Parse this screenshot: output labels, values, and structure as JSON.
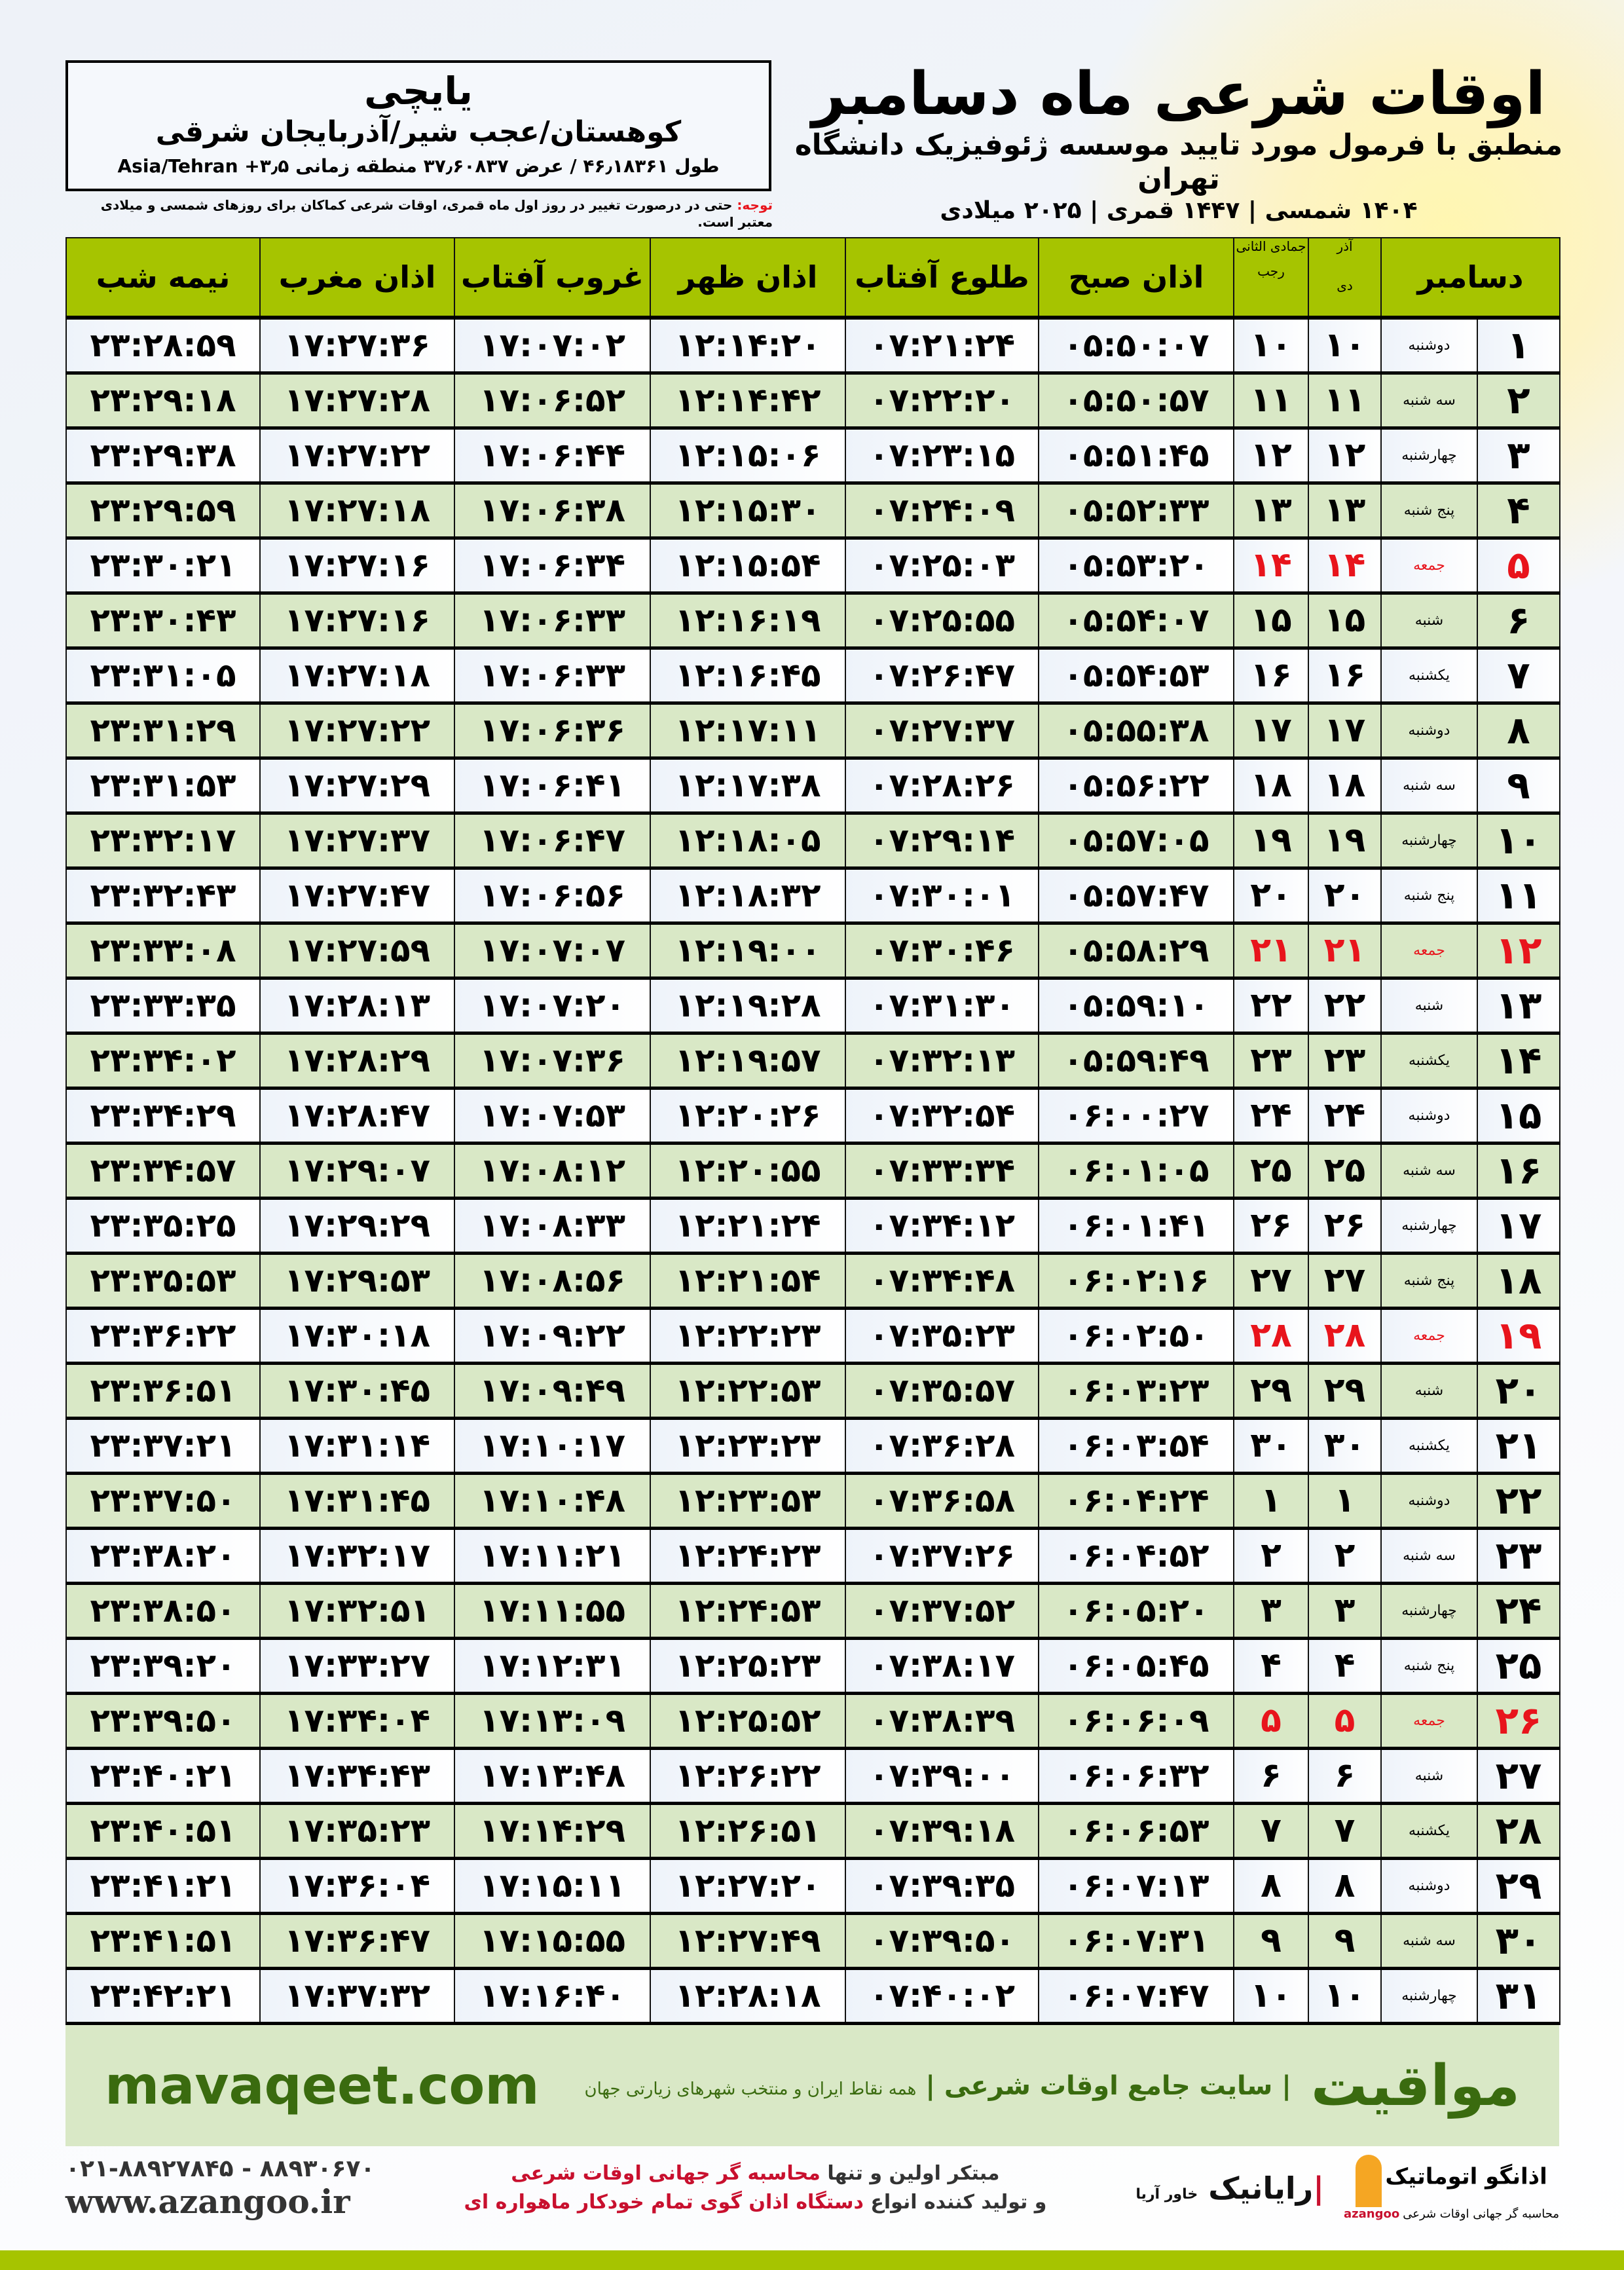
{
  "header": {
    "title": "اوقات شرعی ماه دسامبر",
    "subtitle": "منطبق با فرمول مورد تایید موسسه ژئوفیزیک دانشگاه تهران",
    "dateline": "۱۴۰۴ شمسی | ۱۴۴۷ قمری | ۲۰۲۵ میلادی"
  },
  "location": {
    "name": "یایچی",
    "path": "کوهستان/عجب شیر/آذربایجان شرقی",
    "coords": "طول ۴۶٫۱۸۳۶۱ / عرض ۳۷٫۶۰۸۳۷ منطقه زمانی ۳٫۵+ Asia/Tehran"
  },
  "note": {
    "label": "توجه:",
    "text": " حتی در درصورت تغییر در روز اول ماه قمری، اوقات شرعی کماکان برای روزهای شمسی و میلادی معتبر است."
  },
  "table": {
    "headers": {
      "month": "دسامبر",
      "prev_shamsi": "آذر",
      "dey": "دی",
      "prev_qamari": "جمادی الثانی",
      "rajab": "رجب",
      "sobh": "اذان صبح",
      "tolu": "طلوع آفتاب",
      "zohr": "اذان ظهر",
      "ghorub": "غروب آفتاب",
      "maghreb": "اذان مغرب",
      "nime": "نیمه شب"
    },
    "friday_color": "#e8141c",
    "rows": [
      [
        "۱",
        "دوشنبه",
        "۱۰",
        "۱۰",
        "۰۵:۵۰:۰۷",
        "۰۷:۲۱:۲۴",
        "۱۲:۱۴:۲۰",
        "۱۷:۰۷:۰۲",
        "۱۷:۲۷:۳۶",
        "۲۳:۲۸:۵۹"
      ],
      [
        "۲",
        "سه شنبه",
        "۱۱",
        "۱۱",
        "۰۵:۵۰:۵۷",
        "۰۷:۲۲:۲۰",
        "۱۲:۱۴:۴۲",
        "۱۷:۰۶:۵۲",
        "۱۷:۲۷:۲۸",
        "۲۳:۲۹:۱۸"
      ],
      [
        "۳",
        "چهارشنبه",
        "۱۲",
        "۱۲",
        "۰۵:۵۱:۴۵",
        "۰۷:۲۳:۱۵",
        "۱۲:۱۵:۰۶",
        "۱۷:۰۶:۴۴",
        "۱۷:۲۷:۲۲",
        "۲۳:۲۹:۳۸"
      ],
      [
        "۴",
        "پنج شنبه",
        "۱۳",
        "۱۳",
        "۰۵:۵۲:۳۳",
        "۰۷:۲۴:۰۹",
        "۱۲:۱۵:۳۰",
        "۱۷:۰۶:۳۸",
        "۱۷:۲۷:۱۸",
        "۲۳:۲۹:۵۹"
      ],
      [
        "۵",
        "جمعه",
        "۱۴",
        "۱۴",
        "۰۵:۵۳:۲۰",
        "۰۷:۲۵:۰۳",
        "۱۲:۱۵:۵۴",
        "۱۷:۰۶:۳۴",
        "۱۷:۲۷:۱۶",
        "۲۳:۳۰:۲۱"
      ],
      [
        "۶",
        "شنبه",
        "۱۵",
        "۱۵",
        "۰۵:۵۴:۰۷",
        "۰۷:۲۵:۵۵",
        "۱۲:۱۶:۱۹",
        "۱۷:۰۶:۳۳",
        "۱۷:۲۷:۱۶",
        "۲۳:۳۰:۴۳"
      ],
      [
        "۷",
        "یکشنبه",
        "۱۶",
        "۱۶",
        "۰۵:۵۴:۵۳",
        "۰۷:۲۶:۴۷",
        "۱۲:۱۶:۴۵",
        "۱۷:۰۶:۳۳",
        "۱۷:۲۷:۱۸",
        "۲۳:۳۱:۰۵"
      ],
      [
        "۸",
        "دوشنبه",
        "۱۷",
        "۱۷",
        "۰۵:۵۵:۳۸",
        "۰۷:۲۷:۳۷",
        "۱۲:۱۷:۱۱",
        "۱۷:۰۶:۳۶",
        "۱۷:۲۷:۲۲",
        "۲۳:۳۱:۲۹"
      ],
      [
        "۹",
        "سه شنبه",
        "۱۸",
        "۱۸",
        "۰۵:۵۶:۲۲",
        "۰۷:۲۸:۲۶",
        "۱۲:۱۷:۳۸",
        "۱۷:۰۶:۴۱",
        "۱۷:۲۷:۲۹",
        "۲۳:۳۱:۵۳"
      ],
      [
        "۱۰",
        "چهارشنبه",
        "۱۹",
        "۱۹",
        "۰۵:۵۷:۰۵",
        "۰۷:۲۹:۱۴",
        "۱۲:۱۸:۰۵",
        "۱۷:۰۶:۴۷",
        "۱۷:۲۷:۳۷",
        "۲۳:۳۲:۱۷"
      ],
      [
        "۱۱",
        "پنج شنبه",
        "۲۰",
        "۲۰",
        "۰۵:۵۷:۴۷",
        "۰۷:۳۰:۰۱",
        "۱۲:۱۸:۳۲",
        "۱۷:۰۶:۵۶",
        "۱۷:۲۷:۴۷",
        "۲۳:۳۲:۴۳"
      ],
      [
        "۱۲",
        "جمعه",
        "۲۱",
        "۲۱",
        "۰۵:۵۸:۲۹",
        "۰۷:۳۰:۴۶",
        "۱۲:۱۹:۰۰",
        "۱۷:۰۷:۰۷",
        "۱۷:۲۷:۵۹",
        "۲۳:۳۳:۰۸"
      ],
      [
        "۱۳",
        "شنبه",
        "۲۲",
        "۲۲",
        "۰۵:۵۹:۱۰",
        "۰۷:۳۱:۳۰",
        "۱۲:۱۹:۲۸",
        "۱۷:۰۷:۲۰",
        "۱۷:۲۸:۱۳",
        "۲۳:۳۳:۳۵"
      ],
      [
        "۱۴",
        "یکشنبه",
        "۲۳",
        "۲۳",
        "۰۵:۵۹:۴۹",
        "۰۷:۳۲:۱۳",
        "۱۲:۱۹:۵۷",
        "۱۷:۰۷:۳۶",
        "۱۷:۲۸:۲۹",
        "۲۳:۳۴:۰۲"
      ],
      [
        "۱۵",
        "دوشنبه",
        "۲۴",
        "۲۴",
        "۰۶:۰۰:۲۷",
        "۰۷:۳۲:۵۴",
        "۱۲:۲۰:۲۶",
        "۱۷:۰۷:۵۳",
        "۱۷:۲۸:۴۷",
        "۲۳:۳۴:۲۹"
      ],
      [
        "۱۶",
        "سه شنبه",
        "۲۵",
        "۲۵",
        "۰۶:۰۱:۰۵",
        "۰۷:۳۳:۳۴",
        "۱۲:۲۰:۵۵",
        "۱۷:۰۸:۱۲",
        "۱۷:۲۹:۰۷",
        "۲۳:۳۴:۵۷"
      ],
      [
        "۱۷",
        "چهارشنبه",
        "۲۶",
        "۲۶",
        "۰۶:۰۱:۴۱",
        "۰۷:۳۴:۱۲",
        "۱۲:۲۱:۲۴",
        "۱۷:۰۸:۳۳",
        "۱۷:۲۹:۲۹",
        "۲۳:۳۵:۲۵"
      ],
      [
        "۱۸",
        "پنج شنبه",
        "۲۷",
        "۲۷",
        "۰۶:۰۲:۱۶",
        "۰۷:۳۴:۴۸",
        "۱۲:۲۱:۵۴",
        "۱۷:۰۸:۵۶",
        "۱۷:۲۹:۵۳",
        "۲۳:۳۵:۵۳"
      ],
      [
        "۱۹",
        "جمعه",
        "۲۸",
        "۲۸",
        "۰۶:۰۲:۵۰",
        "۰۷:۳۵:۲۳",
        "۱۲:۲۲:۲۳",
        "۱۷:۰۹:۲۲",
        "۱۷:۳۰:۱۸",
        "۲۳:۳۶:۲۲"
      ],
      [
        "۲۰",
        "شنبه",
        "۲۹",
        "۲۹",
        "۰۶:۰۳:۲۳",
        "۰۷:۳۵:۵۷",
        "۱۲:۲۲:۵۳",
        "۱۷:۰۹:۴۹",
        "۱۷:۳۰:۴۵",
        "۲۳:۳۶:۵۱"
      ],
      [
        "۲۱",
        "یکشنبه",
        "۳۰",
        "۳۰",
        "۰۶:۰۳:۵۴",
        "۰۷:۳۶:۲۸",
        "۱۲:۲۳:۲۳",
        "۱۷:۱۰:۱۷",
        "۱۷:۳۱:۱۴",
        "۲۳:۳۷:۲۱"
      ],
      [
        "۲۲",
        "دوشنبه",
        "۱",
        "۱",
        "۰۶:۰۴:۲۴",
        "۰۷:۳۶:۵۸",
        "۱۲:۲۳:۵۳",
        "۱۷:۱۰:۴۸",
        "۱۷:۳۱:۴۵",
        "۲۳:۳۷:۵۰"
      ],
      [
        "۲۳",
        "سه شنبه",
        "۲",
        "۲",
        "۰۶:۰۴:۵۲",
        "۰۷:۳۷:۲۶",
        "۱۲:۲۴:۲۳",
        "۱۷:۱۱:۲۱",
        "۱۷:۳۲:۱۷",
        "۲۳:۳۸:۲۰"
      ],
      [
        "۲۴",
        "چهارشنبه",
        "۳",
        "۳",
        "۰۶:۰۵:۲۰",
        "۰۷:۳۷:۵۲",
        "۱۲:۲۴:۵۳",
        "۱۷:۱۱:۵۵",
        "۱۷:۳۲:۵۱",
        "۲۳:۳۸:۵۰"
      ],
      [
        "۲۵",
        "پنج شنبه",
        "۴",
        "۴",
        "۰۶:۰۵:۴۵",
        "۰۷:۳۸:۱۷",
        "۱۲:۲۵:۲۳",
        "۱۷:۱۲:۳۱",
        "۱۷:۳۳:۲۷",
        "۲۳:۳۹:۲۰"
      ],
      [
        "۲۶",
        "جمعه",
        "۵",
        "۵",
        "۰۶:۰۶:۰۹",
        "۰۷:۳۸:۳۹",
        "۱۲:۲۵:۵۲",
        "۱۷:۱۳:۰۹",
        "۱۷:۳۴:۰۴",
        "۲۳:۳۹:۵۰"
      ],
      [
        "۲۷",
        "شنبه",
        "۶",
        "۶",
        "۰۶:۰۶:۳۲",
        "۰۷:۳۹:۰۰",
        "۱۲:۲۶:۲۲",
        "۱۷:۱۳:۴۸",
        "۱۷:۳۴:۴۳",
        "۲۳:۴۰:۲۱"
      ],
      [
        "۲۸",
        "یکشنبه",
        "۷",
        "۷",
        "۰۶:۰۶:۵۳",
        "۰۷:۳۹:۱۸",
        "۱۲:۲۶:۵۱",
        "۱۷:۱۴:۲۹",
        "۱۷:۳۵:۲۳",
        "۲۳:۴۰:۵۱"
      ],
      [
        "۲۹",
        "دوشنبه",
        "۸",
        "۸",
        "۰۶:۰۷:۱۳",
        "۰۷:۳۹:۳۵",
        "۱۲:۲۷:۲۰",
        "۱۷:۱۵:۱۱",
        "۱۷:۳۶:۰۴",
        "۲۳:۴۱:۲۱"
      ],
      [
        "۳۰",
        "سه شنبه",
        "۹",
        "۹",
        "۰۶:۰۷:۳۱",
        "۰۷:۳۹:۵۰",
        "۱۲:۲۷:۴۹",
        "۱۷:۱۵:۵۵",
        "۱۷:۳۶:۴۷",
        "۲۳:۴۱:۵۱"
      ],
      [
        "۳۱",
        "چهارشنبه",
        "۱۰",
        "۱۰",
        "۰۶:۰۷:۴۷",
        "۰۷:۴۰:۰۲",
        "۱۲:۲۸:۱۸",
        "۱۷:۱۶:۴۰",
        "۱۷:۳۷:۳۲",
        "۲۳:۴۲:۲۱"
      ]
    ]
  },
  "footer": {
    "brand": "مواقیت",
    "tagline": "| سایت جامع اوقات شرعی |",
    "tagline_sub": "همه نقاط ایران و منتخب شهرهای زیارتی جهان",
    "site": "mavaqeet.com",
    "phone": "۰۲۱-۸۸۹۲۷۸۴۵ - ۸۸۹۳۰۶۷۰",
    "web": "www.azangoo.ir",
    "promo_1a": "مبتکر اولین و تنها ",
    "promo_1b": "محاسبه گر جهانی اوقات شرعی",
    "promo_2a": "و تولید کننده انواع ",
    "promo_2b": "دستگاه اذان گوی تمام خودکار ماهواره ای",
    "logo_rayanik": "رایانیک",
    "logo_rayanik_sub": "خاور آریا",
    "logo_azangoo": "اذانگو اتوماتیک",
    "logo_azangoo_sub": "محاسبه گر جهانی اوقات شرعی",
    "logo_azangoo_en": "azangoo"
  },
  "colors": {
    "header_green": "#a6c400",
    "row_green": "#d9e8c6",
    "friday_red": "#e8141c",
    "brand_green": "#3a6b0f"
  }
}
